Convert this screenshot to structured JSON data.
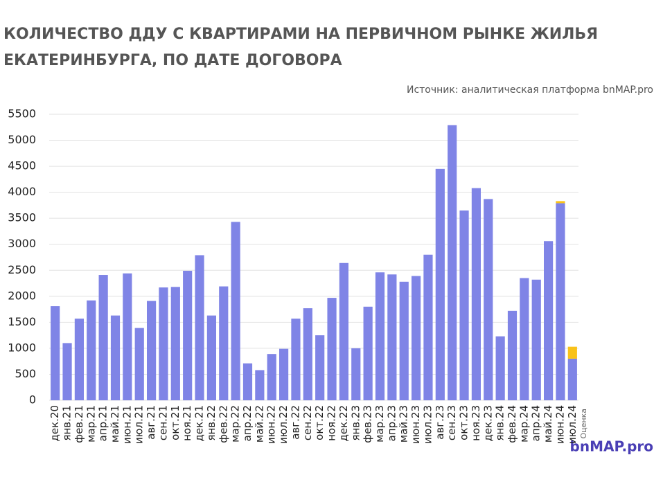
{
  "chart_data": {
    "type": "bar",
    "stacked": true,
    "title_lines": [
      "КОЛИЧЕСТВО ДДУ С КВАРТИРАМИ НА ПЕРВИЧНОМ РЫНКЕ ЖИЛЬЯ",
      "ЕКАТЕРИНБУРГА, ПО ДАТЕ ДОГОВОРА"
    ],
    "source": "Источник: аналитическая платформа bnMAP.pro",
    "logo": "bnMAP.pro",
    "categories": [
      "дек.20",
      "янв.21",
      "фев.21",
      "мар.21",
      "апр.21",
      "май.21",
      "июн.21",
      "июл.21",
      "авг.21",
      "сен.21",
      "окт.21",
      "ноя.21",
      "дек.21",
      "янв.22",
      "фев.22",
      "мар.22",
      "апр.22",
      "май.22",
      "июн.22",
      "июл.22",
      "авг.22",
      "сен.22",
      "окт.22",
      "ноя.22",
      "дек.22",
      "янв.23",
      "фев.23",
      "мар.23",
      "апр.23",
      "май.23",
      "июн.23",
      "июл.23",
      "авг.23",
      "сен.23",
      "окт.23",
      "ноя.23",
      "дек.23",
      "янв.24",
      "фев.24",
      "мар.24",
      "апр.24",
      "май.24",
      "июн.24",
      "июл.24"
    ],
    "series": [
      {
        "color": "#7f84e6",
        "values": [
          1810,
          1100,
          1570,
          1920,
          2410,
          1630,
          2440,
          1390,
          1910,
          2170,
          2180,
          2490,
          2790,
          1630,
          2190,
          3430,
          710,
          580,
          890,
          990,
          1570,
          1770,
          1250,
          1970,
          2640,
          1000,
          1800,
          2460,
          2420,
          2280,
          2390,
          2800,
          4450,
          5290,
          3650,
          4080,
          3870,
          1230,
          1720,
          2350,
          2320,
          3060,
          3790,
          800
        ]
      },
      {
        "name": "Оценка",
        "color": "#f9c21a",
        "values": [
          null,
          null,
          null,
          null,
          null,
          null,
          null,
          null,
          null,
          null,
          null,
          null,
          null,
          null,
          null,
          null,
          null,
          null,
          null,
          null,
          null,
          null,
          null,
          null,
          null,
          null,
          null,
          null,
          null,
          null,
          null,
          null,
          null,
          null,
          null,
          null,
          null,
          null,
          null,
          null,
          null,
          null,
          40,
          230
        ]
      }
    ],
    "ylim": [
      0,
      5500
    ],
    "yticks": [
      0,
      500,
      1000,
      1500,
      2000,
      2500,
      3000,
      3500,
      4000,
      4500,
      5000,
      5500
    ],
    "grid": true
  }
}
